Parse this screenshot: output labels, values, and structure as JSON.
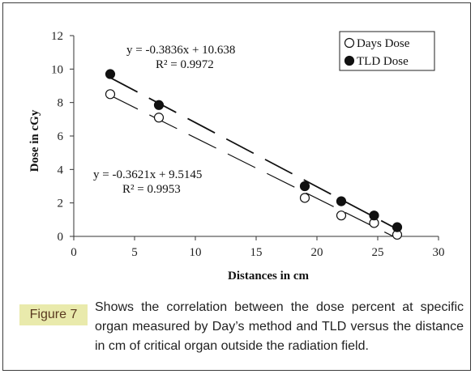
{
  "chart_data": {
    "type": "scatter",
    "xlabel": "Distances in cm",
    "ylabel": "Dose in cGy",
    "xlim": [
      0,
      30
    ],
    "ylim": [
      0,
      12
    ],
    "x_ticks": [
      "0",
      "5",
      "10",
      "15",
      "20",
      "25",
      "30"
    ],
    "y_ticks": [
      "0",
      "2",
      "4",
      "6",
      "8",
      "10",
      "12"
    ],
    "grid": false,
    "legend_position": "top-right",
    "series": [
      {
        "name": "Days Dose",
        "marker": "open-circle",
        "x": [
          3,
          7,
          19,
          22,
          24.7,
          26.6
        ],
        "y": [
          8.5,
          7.1,
          2.3,
          1.25,
          0.8,
          0.1
        ],
        "trendline": {
          "slope": -0.3621,
          "intercept": 9.5145,
          "style": "long-dash"
        },
        "equation": "y = -0.3621x + 9.5145",
        "r2": "R² = 0.9953"
      },
      {
        "name": "TLD Dose",
        "marker": "filled-circle",
        "x": [
          3,
          7,
          19,
          22,
          24.7,
          26.6
        ],
        "y": [
          9.7,
          7.85,
          3.0,
          2.1,
          1.25,
          0.55
        ],
        "trendline": {
          "slope": -0.3836,
          "intercept": 10.638,
          "style": "long-dash"
        },
        "equation": "y = -0.3836x + 10.638",
        "r2": "R² = 0.9972"
      }
    ]
  },
  "figure": {
    "label": "Figure 7",
    "caption": "Shows the correlation between the dose percent at specific organ measured by Day’s method and TLD versus the distance in cm of critical organ outside the radiation field."
  },
  "colors": {
    "label_bg": "#e9eaac",
    "label_text": "#5a3a20",
    "border": "#3d3d3d"
  }
}
